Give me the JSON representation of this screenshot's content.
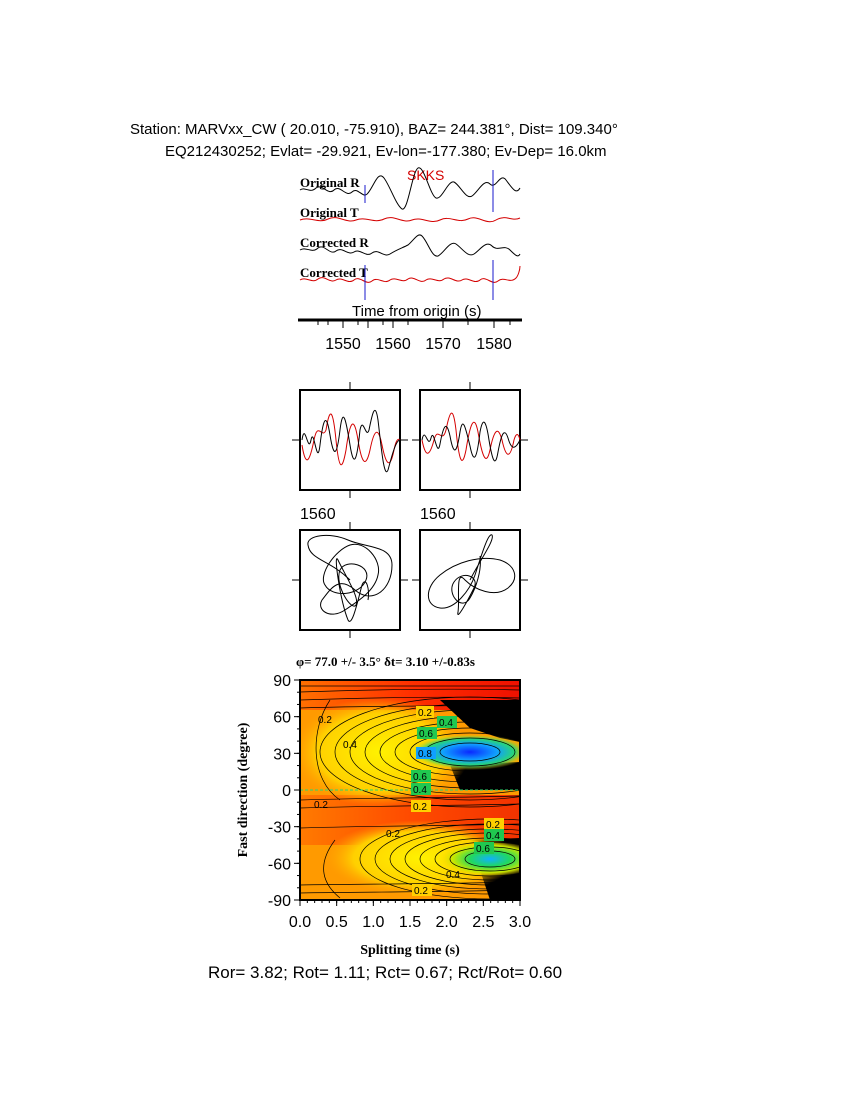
{
  "header": {
    "line1": "Station: MARVxx_CW (  20.010,  -75.910), BAZ=  244.381°, Dist=  109.340°",
    "line2": "EQ212430252; Evlat= -29.921, Ev-lon=-177.380; Ev-Dep= 16.0km"
  },
  "traces": {
    "phase": "SKKS",
    "labels": [
      "Original R",
      "Original T",
      "Corrected R",
      "Corrected T"
    ],
    "xlabel": "Time from origin (s)",
    "ticks": [
      "1550",
      "1560",
      "1570",
      "1580"
    ]
  },
  "particle": {
    "left_label": "1560",
    "right_label": "1560"
  },
  "result": {
    "title": "φ= 77.0 +/- 3.5° δt= 3.10 +/-0.83s",
    "ratios": "Ror= 3.82; Rot= 1.11; Rct= 0.67; Rct/Rot= 0.60"
  },
  "colors": {
    "radial": "#000000",
    "transverse": "#d40000",
    "marker": "#1a1acc"
  },
  "chart_data": {
    "type": "heatmap",
    "xlabel": "Splitting time (s)",
    "ylabel": "Fast direction (degree)",
    "xlim": [
      0,
      3
    ],
    "ylim": [
      -90,
      90
    ],
    "x_ticks": [
      "0.0",
      "0.5",
      "1.0",
      "1.5",
      "2.0",
      "2.5",
      "3.0"
    ],
    "y_ticks": [
      "90",
      "60",
      "30",
      "0",
      "-30",
      "-60",
      "-90"
    ],
    "best_fit": {
      "phi": 77.0,
      "phi_err": 3.5,
      "dt": 3.1,
      "dt_err": 0.83
    },
    "contour_labels": [
      "0.2",
      "0.2",
      "0.2",
      "0.2",
      "0.2",
      "0.2",
      "0.4",
      "0.4",
      "0.4",
      "0.4",
      "0.4",
      "0.6",
      "0.6",
      "0.6",
      "0.8",
      "0.2"
    ]
  }
}
